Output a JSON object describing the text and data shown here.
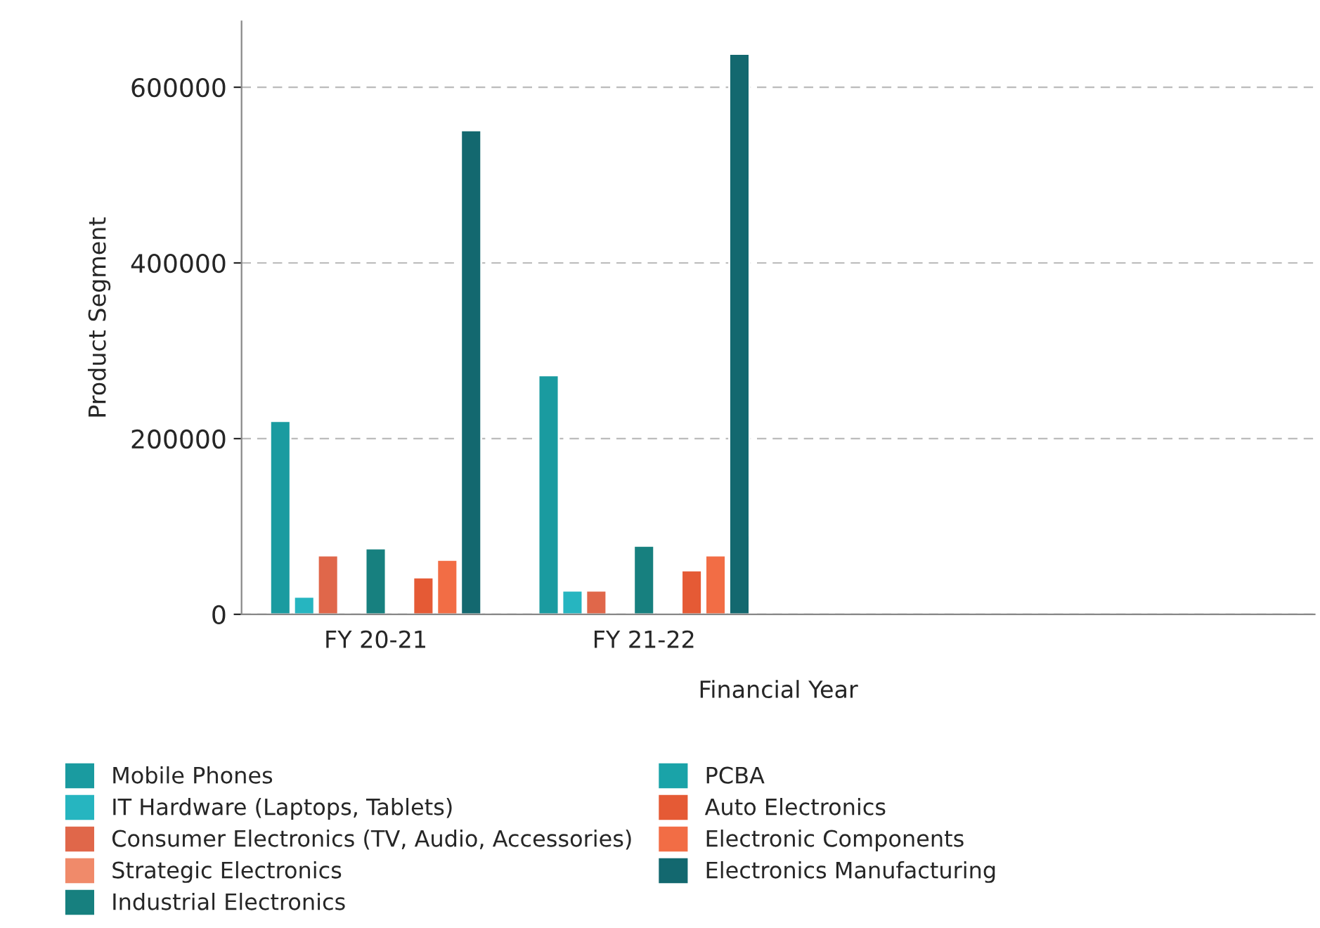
{
  "chart_data": {
    "type": "bar",
    "xlabel": "Financial Year",
    "ylabel": "Product Segment",
    "categories": [
      "FY 20-21",
      "FY 21-22",
      null,
      null
    ],
    "series": [
      {
        "name": "Mobile Phones",
        "color": "#1a9ba0",
        "values": [
          220000,
          272000,
          null,
          null
        ]
      },
      {
        "name": "IT Hardware (Laptops, Tablets)",
        "color": "#26b5c0",
        "values": [
          20000,
          27000,
          null,
          null
        ]
      },
      {
        "name": "Consumer Electronics (TV, Audio, Accessories)",
        "color": "#e0674a",
        "values": [
          67000,
          27000,
          null,
          null
        ]
      },
      {
        "name": "Strategic Electronics",
        "color": "#f08a6a",
        "values": [
          null,
          null,
          null,
          null
        ]
      },
      {
        "name": "Industrial Electronics",
        "color": "#17807f",
        "values": [
          75000,
          78000,
          null,
          null
        ]
      },
      {
        "name": "PCBA",
        "color": "#1aa3a8",
        "values": [
          null,
          2000,
          null,
          null
        ]
      },
      {
        "name": "Auto Electronics",
        "color": "#e55a35",
        "values": [
          42000,
          50000,
          null,
          null
        ]
      },
      {
        "name": "Electronic Components",
        "color": "#f26d45",
        "values": [
          62000,
          67000,
          null,
          null
        ]
      },
      {
        "name": "Electronics Manufacturing",
        "color": "#13686f",
        "values": [
          551000,
          638000,
          null,
          null
        ]
      }
    ],
    "ylim": [
      0,
      675000
    ],
    "yticks": [
      0,
      200000,
      400000,
      600000
    ],
    "grid": "y",
    "legend": "bottom"
  }
}
